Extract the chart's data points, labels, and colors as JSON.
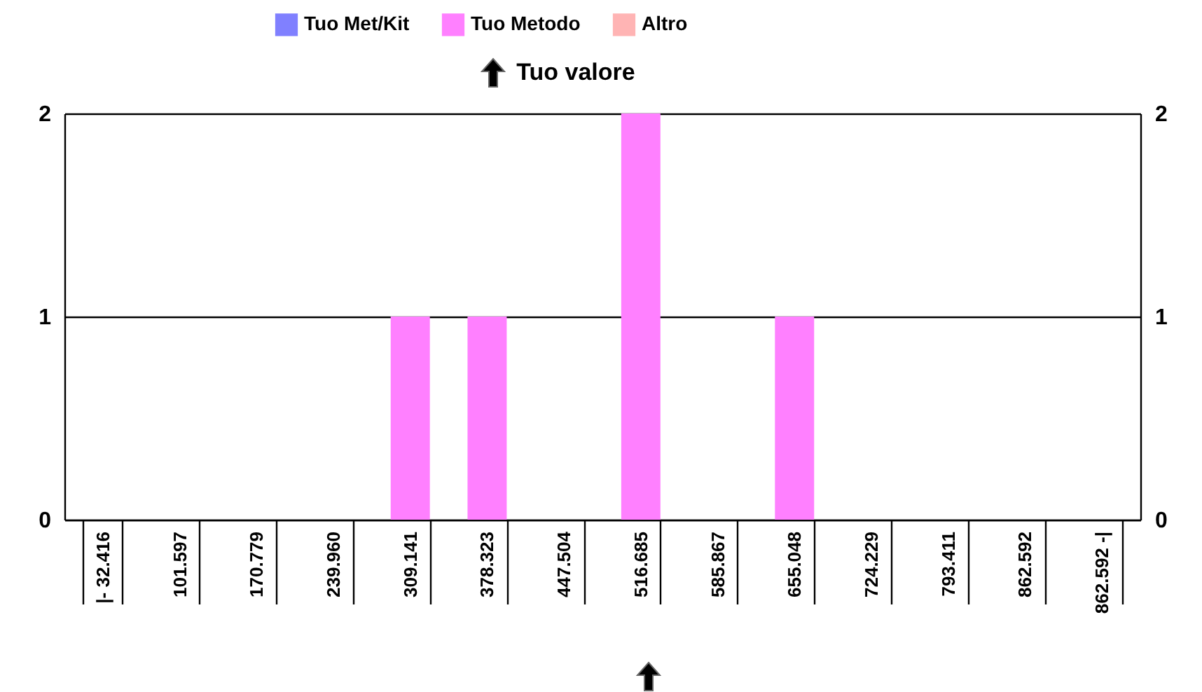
{
  "chart_data": {
    "type": "bar",
    "categories": [
      "|- 32.416",
      "101.597",
      "170.779",
      "239.960",
      "309.141",
      "378.323",
      "447.504",
      "516.685",
      "585.867",
      "655.048",
      "724.229",
      "793.411",
      "862.592",
      "862.592 -|"
    ],
    "series": [
      {
        "name": "Tuo Met/Kit",
        "color": "#8080ff",
        "values": [
          null,
          null,
          null,
          null,
          null,
          null,
          null,
          null,
          null,
          null,
          null,
          null,
          null,
          null
        ]
      },
      {
        "name": "Tuo Metodo",
        "color": "#ff80ff",
        "values": [
          0,
          0,
          0,
          0,
          1,
          1,
          0,
          2,
          0,
          1,
          0,
          0,
          0,
          0
        ]
      },
      {
        "name": "Altro",
        "color": "#ffb4b4",
        "values": [
          null,
          null,
          null,
          null,
          null,
          null,
          null,
          null,
          null,
          null,
          null,
          null,
          null,
          null
        ]
      }
    ],
    "ylim": [
      0,
      2
    ],
    "yticks": [
      0,
      1,
      2
    ],
    "y2lim": [
      0,
      2
    ],
    "y2ticks": [
      0,
      1,
      2
    ],
    "grid": "y",
    "legend": "top",
    "annotations": [
      "Tuo valore"
    ]
  }
}
